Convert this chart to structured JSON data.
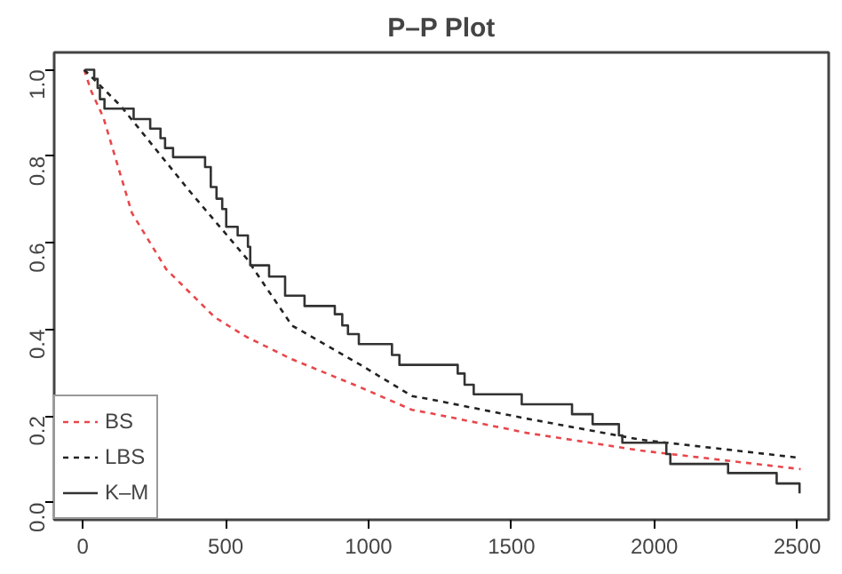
{
  "chart_data": {
    "type": "line",
    "title": "P–P Plot",
    "xlim": [
      -100,
      2610
    ],
    "ylim": [
      -0.04,
      1.04
    ],
    "xticks": [
      0,
      500,
      1000,
      1500,
      2000,
      2500
    ],
    "yticks": [
      {
        "value": 0,
        "label": "0.0"
      },
      {
        "value": 0.2,
        "label": "0.2"
      },
      {
        "value": 0.4,
        "label": "0.4"
      },
      {
        "value": 0.6,
        "label": "0.6"
      },
      {
        "value": 0.8,
        "label": "0.8"
      },
      {
        "value": 1,
        "label": "1.0"
      }
    ],
    "grid": false,
    "legend": "bottom left",
    "marker": "none",
    "series": [
      {
        "name": "BS",
        "line_style": "dashed",
        "color": "#e8474b",
        "x": [
          5,
          30,
          72,
          172,
          292,
          462,
          572,
          732,
          972,
          1152,
          1212,
          1552,
          1952,
          2512
        ],
        "values": [
          1.0,
          0.95,
          0.89,
          0.669,
          0.539,
          0.428,
          0.383,
          0.331,
          0.266,
          0.214,
          0.207,
          0.161,
          0.12,
          0.077
        ]
      },
      {
        "name": "LBS",
        "line_style": "dashed",
        "color": "#222222",
        "x": [
          5,
          132,
          372,
          572,
          732,
          972,
          1152,
          1212,
          1552,
          1952,
          2512
        ],
        "values": [
          1.0,
          0.917,
          0.721,
          0.565,
          0.409,
          0.318,
          0.246,
          0.239,
          0.194,
          0.145,
          0.103
        ]
      },
      {
        "name": "K–M",
        "type": "step",
        "line_style": "solid",
        "color": "#333333",
        "x": [
          8,
          40,
          52,
          60,
          76,
          178,
          236,
          272,
          288,
          316,
          428,
          448,
          468,
          488,
          502,
          542,
          578,
          586,
          652,
          708,
          776,
          882,
          908,
          928,
          966,
          1082,
          1108,
          1312,
          1336,
          1368,
          1536,
          1712,
          1784,
          1876,
          1888,
          2042,
          2056,
          2258,
          2428,
          2508
        ],
        "values": [
          1.0,
          0.979,
          0.958,
          0.932,
          0.91,
          0.886,
          0.864,
          0.842,
          0.819,
          0.798,
          0.775,
          0.729,
          0.702,
          0.678,
          0.637,
          0.617,
          0.591,
          0.548,
          0.522,
          0.478,
          0.454,
          0.435,
          0.409,
          0.389,
          0.366,
          0.341,
          0.318,
          0.298,
          0.272,
          0.25,
          0.227,
          0.204,
          0.181,
          0.155,
          0.138,
          0.112,
          0.089,
          0.068,
          0.044,
          0.021
        ]
      }
    ]
  }
}
